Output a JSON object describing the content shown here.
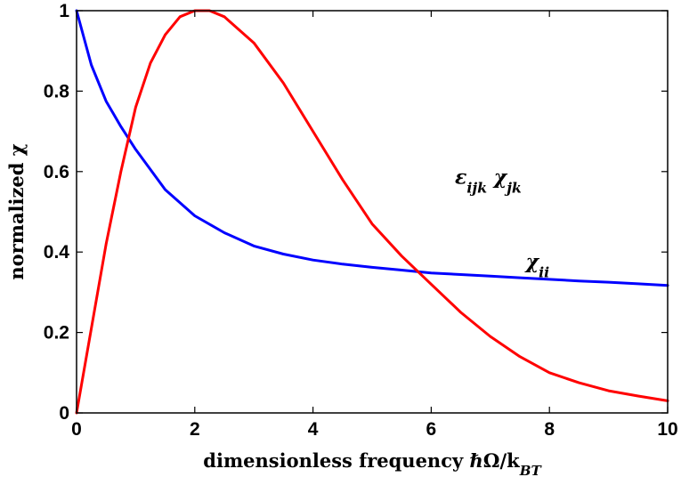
{
  "chart_data": {
    "type": "line",
    "xlabel": "dimensionless frequency ℏΩ/k_BT",
    "ylabel": "normalized χ",
    "xlim": [
      0,
      10
    ],
    "ylim": [
      0,
      1
    ],
    "x_ticks": [
      0,
      2,
      4,
      6,
      8,
      10
    ],
    "y_ticks": [
      0,
      0.2,
      0.4,
      0.6,
      0.8,
      1
    ],
    "grid": false,
    "series": [
      {
        "name": "χ_ii",
        "color": "#0000ff",
        "x": [
          0,
          0.25,
          0.5,
          0.75,
          1,
          1.5,
          2,
          2.5,
          3,
          3.5,
          4,
          4.5,
          5,
          5.5,
          6,
          6.5,
          7,
          7.5,
          8,
          8.5,
          9,
          9.5,
          10
        ],
        "y": [
          1.0,
          0.865,
          0.775,
          0.712,
          0.655,
          0.555,
          0.49,
          0.448,
          0.415,
          0.395,
          0.38,
          0.37,
          0.362,
          0.355,
          0.348,
          0.344,
          0.34,
          0.336,
          0.332,
          0.328,
          0.325,
          0.321,
          0.317
        ]
      },
      {
        "name": "ε_ijk χ_jk",
        "color": "#ff0000",
        "x": [
          0,
          0.25,
          0.5,
          0.75,
          1,
          1.25,
          1.5,
          1.75,
          2,
          2.25,
          2.5,
          3,
          3.5,
          4,
          4.5,
          5,
          5.5,
          6,
          6.5,
          7,
          7.5,
          8,
          8.5,
          9,
          9.5,
          10
        ],
        "y": [
          0,
          0.21,
          0.42,
          0.6,
          0.76,
          0.87,
          0.94,
          0.985,
          1.0,
          1.0,
          0.985,
          0.92,
          0.82,
          0.7,
          0.58,
          0.47,
          0.39,
          0.32,
          0.25,
          0.19,
          0.14,
          0.1,
          0.075,
          0.055,
          0.042,
          0.03
        ]
      }
    ],
    "annotations": [
      {
        "text": "ε_ijk χ_jk",
        "x": 6.4,
        "y": 0.57,
        "color": "#000000"
      },
      {
        "text": "χ_ii",
        "x": 7.6,
        "y": 0.36,
        "color": "#000000"
      }
    ]
  }
}
